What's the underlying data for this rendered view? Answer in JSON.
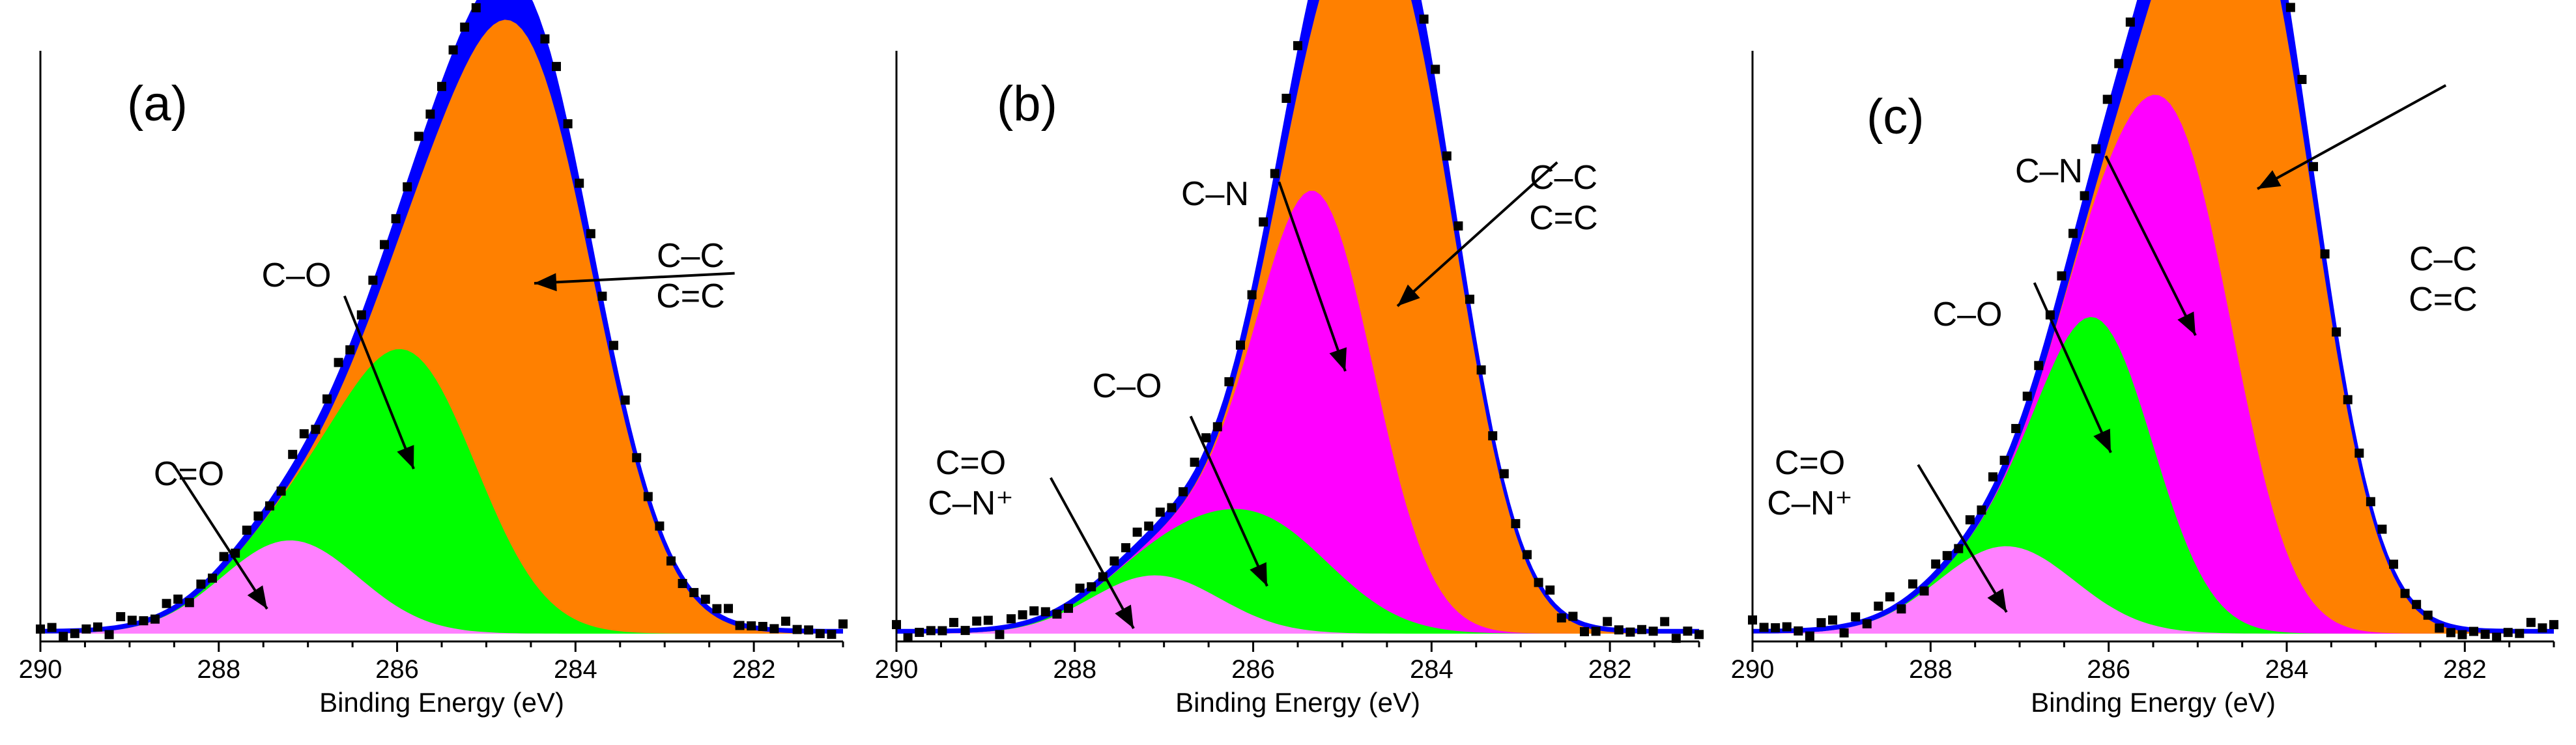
{
  "chart_data": [
    {
      "type": "area",
      "panel": "(a)",
      "xlabel": "Binding Energy (eV)",
      "ylabel": "",
      "xlim": [
        290,
        281
      ],
      "xticks": [
        290,
        288,
        286,
        284,
        282
      ],
      "envelope_color": "#0000ff",
      "components": [
        {
          "name": "C=O",
          "center": 287.2,
          "height": 0.16,
          "width": 1.8,
          "color": "#ff80ff",
          "label_lines": [
            "C=O"
          ],
          "label_dir": [
            -0.65,
            -1.0
          ]
        },
        {
          "name": "C-O",
          "center": 285.85,
          "height": 0.45,
          "width": 1.8,
          "color": "#00ff00",
          "label_lines": [
            "C–O"
          ],
          "label_dir": [
            -0.4,
            -1.0
          ]
        },
        {
          "name": "C-C/C=C",
          "center": 284.55,
          "height": 0.92,
          "width": 1.9,
          "color": "#ff8000",
          "label_lines": [
            "C–C",
            "C=C"
          ],
          "label_dir": [
            1.0,
            -0.05
          ]
        }
      ]
    },
    {
      "type": "area",
      "panel": "(b)",
      "xlabel": "Binding Energy (eV)",
      "ylabel": "",
      "xlim": [
        290,
        281
      ],
      "xticks": [
        290,
        288,
        286,
        284,
        282
      ],
      "envelope_color": "#0000ff",
      "components": [
        {
          "name": "C=O/C-N+",
          "center": 287.1,
          "height": 0.1,
          "width": 1.7,
          "color": "#ff80ff",
          "label_lines": [
            "C=O",
            "C–N⁺"
          ],
          "label_dir": [
            -0.55,
            -1.0
          ]
        },
        {
          "name": "C-O",
          "center": 285.9,
          "height": 0.18,
          "width": 1.9,
          "color": "#00ff00",
          "label_lines": [
            "C–O"
          ],
          "label_dir": [
            -0.45,
            -1.0
          ]
        },
        {
          "name": "C-N",
          "center": 285.25,
          "height": 0.62,
          "width": 1.5,
          "color": "#ff00ff",
          "label_lines": [
            "C–N"
          ],
          "label_dir": [
            -0.35,
            -1.0
          ]
        },
        {
          "name": "C-C/C=C",
          "center": 284.3,
          "height": 0.9,
          "width": 1.6,
          "color": "#ff8000",
          "label_lines": [
            "C–C",
            "C=C"
          ],
          "label_dir": [
            1.0,
            -0.9
          ]
        }
      ]
    },
    {
      "type": "area",
      "panel": "(c)",
      "xlabel": "Binding Energy (eV)",
      "ylabel": "",
      "xlim": [
        290,
        281
      ],
      "xticks": [
        290,
        288,
        286,
        284,
        282
      ],
      "envelope_color": "#0000ff",
      "components": [
        {
          "name": "C=O/C-N+",
          "center": 287.15,
          "height": 0.15,
          "width": 1.8,
          "color": "#ff80ff",
          "label_lines": [
            "C=O",
            "C–N⁺"
          ],
          "label_dir": [
            -0.6,
            -1.0
          ]
        },
        {
          "name": "C-O",
          "center": 286.1,
          "height": 0.48,
          "width": 1.5,
          "color": "#00ff00",
          "label_lines": [
            "C–O"
          ],
          "label_dir": [
            -0.45,
            -1.0
          ]
        },
        {
          "name": "C-N",
          "center": 285.15,
          "height": 0.7,
          "width": 1.5,
          "color": "#ff00ff",
          "label_lines": [
            "C–N"
          ],
          "label_dir": [
            -0.5,
            -1.0
          ]
        },
        {
          "name": "C-C/C=C",
          "center": 284.25,
          "height": 0.95,
          "width": 1.6,
          "color": "#ff8000",
          "label_lines": [
            "C–C",
            "C=C"
          ],
          "label_dir": [
            1.0,
            -0.55
          ]
        }
      ]
    }
  ]
}
